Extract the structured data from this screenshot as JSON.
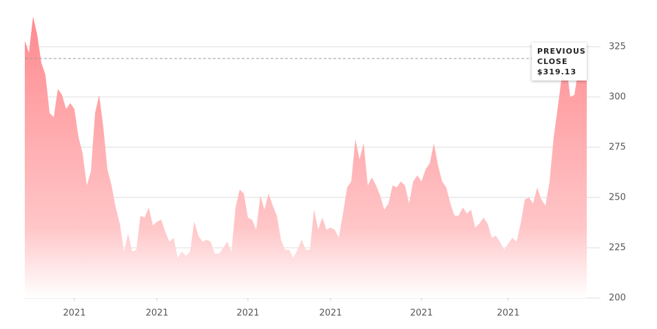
{
  "chart_data": {
    "type": "area",
    "values": [
      328,
      322,
      340,
      331,
      317,
      311,
      292,
      290,
      304,
      301,
      294,
      297,
      294,
      280,
      272,
      256,
      263,
      292,
      301,
      285,
      264,
      256,
      245,
      237,
      223,
      232,
      223,
      224,
      241,
      240,
      245,
      236,
      238,
      239,
      233,
      228,
      230,
      220,
      223,
      221,
      223,
      238,
      231,
      228,
      229,
      228,
      222,
      222,
      225,
      228,
      223,
      245,
      254,
      252,
      240,
      239,
      234,
      251,
      244,
      252,
      246,
      241,
      229,
      224,
      224,
      220,
      224,
      229,
      224,
      224,
      244,
      234,
      240,
      234,
      235,
      234,
      230,
      242,
      255,
      258,
      279,
      269,
      277,
      256,
      260,
      256,
      251,
      244,
      247,
      256,
      255,
      258,
      256,
      247,
      258,
      261,
      258,
      264,
      267,
      277,
      266,
      258,
      255,
      247,
      241,
      241,
      245,
      242,
      244,
      235,
      237,
      240,
      237,
      230,
      231,
      228,
      224,
      227,
      230,
      228,
      237,
      249,
      250,
      247,
      255,
      249,
      246,
      258,
      280,
      295,
      311,
      317,
      300,
      301,
      314,
      312,
      312
    ],
    "color": "#ff8a8f",
    "xlim": [
      0,
      136
    ],
    "xticks": [
      {
        "value": 12,
        "label": "2021"
      },
      {
        "value": 32,
        "label": "2021"
      },
      {
        "value": 54,
        "label": "2021"
      },
      {
        "value": 74,
        "label": "2021"
      },
      {
        "value": 96,
        "label": "2021"
      },
      {
        "value": 117,
        "label": "2021"
      }
    ],
    "ylim": [
      200,
      340
    ],
    "yticks": [
      200,
      225,
      250,
      275,
      300,
      325
    ],
    "grid": true,
    "previous_close": {
      "title": "PREVIOUS CLOSE",
      "value": 319.13,
      "label": "$319.13"
    }
  }
}
